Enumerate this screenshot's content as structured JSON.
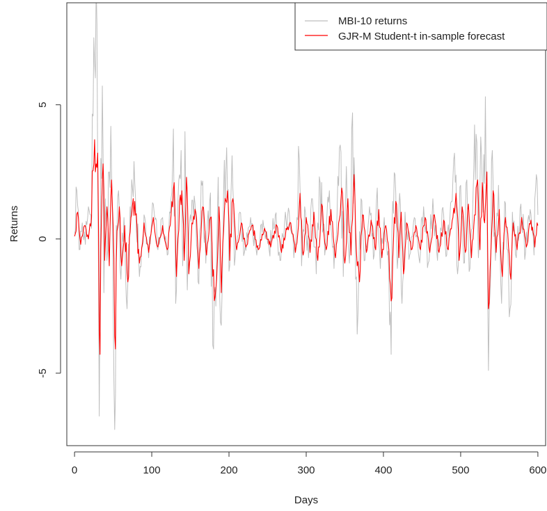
{
  "chart_data": {
    "type": "line",
    "title": "",
    "xlabel": "Days",
    "ylabel": "Returns",
    "xlim": [
      -10,
      610
    ],
    "ylim": [
      -7.7,
      8.8
    ],
    "x_ticks": [
      0,
      100,
      200,
      300,
      400,
      500,
      600
    ],
    "x_tick_labels": [
      "0",
      "100",
      "200",
      "300",
      "400",
      "500",
      "600"
    ],
    "y_ticks": [
      -5,
      0,
      5
    ],
    "y_tick_labels": [
      "-5",
      "0",
      "5"
    ],
    "grid": false,
    "legend_position": "top-right",
    "series": [
      {
        "name": "MBI-10 returns",
        "color": "#bebebe",
        "approximate": true,
        "keypoints": [
          [
            0,
            0.2
          ],
          [
            3,
            1.8
          ],
          [
            6,
            -0.4
          ],
          [
            10,
            0.6
          ],
          [
            14,
            -0.2
          ],
          [
            18,
            1.2
          ],
          [
            22,
            0.4
          ],
          [
            25,
            7.5
          ],
          [
            27,
            6.0
          ],
          [
            29,
            8.0
          ],
          [
            31,
            -1.0
          ],
          [
            32,
            -6.6
          ],
          [
            34,
            3.0
          ],
          [
            36,
            5.7
          ],
          [
            38,
            -2.0
          ],
          [
            40,
            1.5
          ],
          [
            42,
            -0.8
          ],
          [
            45,
            2.5
          ],
          [
            47,
            4.2
          ],
          [
            49,
            1.0
          ],
          [
            51,
            -5.3
          ],
          [
            52,
            -7.1
          ],
          [
            54,
            0.5
          ],
          [
            57,
            1.8
          ],
          [
            60,
            -1.5
          ],
          [
            64,
            0.8
          ],
          [
            68,
            -2.6
          ],
          [
            72,
            1.2
          ],
          [
            78,
            2.1
          ],
          [
            84,
            -1.4
          ],
          [
            90,
            0.9
          ],
          [
            96,
            -0.7
          ],
          [
            102,
            1.3
          ],
          [
            108,
            -0.4
          ],
          [
            114,
            0.8
          ],
          [
            120,
            -0.6
          ],
          [
            125,
            1.5
          ],
          [
            128,
            4.1
          ],
          [
            131,
            -2.4
          ],
          [
            135,
            2.2
          ],
          [
            138,
            3.3
          ],
          [
            140,
            -1.0
          ],
          [
            143,
            4.0
          ],
          [
            146,
            -1.9
          ],
          [
            150,
            0.9
          ],
          [
            155,
            1.6
          ],
          [
            160,
            -1.6
          ],
          [
            165,
            2.0
          ],
          [
            170,
            -0.9
          ],
          [
            175,
            1.4
          ],
          [
            180,
            -4.1
          ],
          [
            183,
            -2.5
          ],
          [
            186,
            2.3
          ],
          [
            189,
            -3.1
          ],
          [
            193,
            1.7
          ],
          [
            197,
            3.4
          ],
          [
            200,
            -1.2
          ],
          [
            204,
            3.1
          ],
          [
            208,
            -0.7
          ],
          [
            214,
            1.0
          ],
          [
            220,
            -0.5
          ],
          [
            228,
            0.8
          ],
          [
            236,
            -0.6
          ],
          [
            244,
            0.7
          ],
          [
            252,
            -0.4
          ],
          [
            260,
            0.9
          ],
          [
            266,
            -0.8
          ],
          [
            272,
            0.6
          ],
          [
            278,
            1.0
          ],
          [
            284,
            -0.7
          ],
          [
            288,
            0.8
          ],
          [
            291,
            3.0
          ],
          [
            294,
            -1.0
          ],
          [
            298,
            1.2
          ],
          [
            303,
            -0.7
          ],
          [
            308,
            1.5
          ],
          [
            313,
            -1.3
          ],
          [
            318,
            2.1
          ],
          [
            324,
            -0.6
          ],
          [
            330,
            1.8
          ],
          [
            336,
            -1.1
          ],
          [
            340,
            1.0
          ],
          [
            344,
            3.5
          ],
          [
            348,
            -1.4
          ],
          [
            352,
            2.7
          ],
          [
            356,
            -0.9
          ],
          [
            360,
            4.7
          ],
          [
            364,
            -1.5
          ],
          [
            367,
            -2.8
          ],
          [
            371,
            1.5
          ],
          [
            376,
            -0.8
          ],
          [
            382,
            1.2
          ],
          [
            388,
            -0.6
          ],
          [
            392,
            1.9
          ],
          [
            396,
            -1.1
          ],
          [
            401,
            0.8
          ],
          [
            405,
            -0.6
          ],
          [
            408,
            -3.2
          ],
          [
            410,
            -4.3
          ],
          [
            412,
            1.4
          ],
          [
            415,
            2.4
          ],
          [
            418,
            -1.1
          ],
          [
            421,
            1.7
          ],
          [
            424,
            -2.4
          ],
          [
            428,
            1.0
          ],
          [
            434,
            -0.6
          ],
          [
            440,
            0.8
          ],
          [
            446,
            -0.7
          ],
          [
            452,
            1.2
          ],
          [
            458,
            -0.9
          ],
          [
            464,
            1.5
          ],
          [
            470,
            -0.8
          ],
          [
            476,
            1.1
          ],
          [
            482,
            -0.6
          ],
          [
            488,
            1.4
          ],
          [
            492,
            3.2
          ],
          [
            496,
            -1.3
          ],
          [
            500,
            2.0
          ],
          [
            504,
            -0.9
          ],
          [
            508,
            2.2
          ],
          [
            512,
            -1.1
          ],
          [
            516,
            1.6
          ],
          [
            520,
            3.9
          ],
          [
            523,
            -0.7
          ],
          [
            526,
            3.8
          ],
          [
            529,
            1.0
          ],
          [
            532,
            5.3
          ],
          [
            534,
            2.0
          ],
          [
            536,
            -4.9
          ],
          [
            538,
            -2.0
          ],
          [
            541,
            3.3
          ],
          [
            545,
            -0.8
          ],
          [
            549,
            2.0
          ],
          [
            553,
            -2.4
          ],
          [
            557,
            1.4
          ],
          [
            561,
            -0.4
          ],
          [
            564,
            -2.6
          ],
          [
            567,
            1.0
          ],
          [
            572,
            -0.7
          ],
          [
            578,
            1.3
          ],
          [
            584,
            -0.5
          ],
          [
            590,
            1.1
          ],
          [
            595,
            -0.6
          ],
          [
            598,
            2.4
          ],
          [
            600,
            0.9
          ]
        ]
      },
      {
        "name": "GJR-M Student-t in-sample forecast",
        "color": "#ff0000",
        "approximate": true,
        "keypoints": [
          [
            0,
            0.1
          ],
          [
            4,
            1.0
          ],
          [
            8,
            -0.2
          ],
          [
            13,
            0.5
          ],
          [
            18,
            0.0
          ],
          [
            22,
            0.8
          ],
          [
            26,
            3.7
          ],
          [
            28,
            2.8
          ],
          [
            30,
            3.2
          ],
          [
            32,
            -3.4
          ],
          [
            33,
            -4.3
          ],
          [
            35,
            1.0
          ],
          [
            37,
            2.8
          ],
          [
            39,
            -0.8
          ],
          [
            42,
            1.2
          ],
          [
            45,
            -1.0
          ],
          [
            48,
            2.2
          ],
          [
            50,
            0.5
          ],
          [
            52,
            -3.6
          ],
          [
            53,
            -4.1
          ],
          [
            55,
            0.3
          ],
          [
            58,
            1.2
          ],
          [
            61,
            -1.0
          ],
          [
            65,
            0.5
          ],
          [
            69,
            -1.6
          ],
          [
            73,
            0.8
          ],
          [
            78,
            1.4
          ],
          [
            84,
            -0.9
          ],
          [
            90,
            0.6
          ],
          [
            96,
            -0.5
          ],
          [
            102,
            0.8
          ],
          [
            108,
            -0.3
          ],
          [
            114,
            0.5
          ],
          [
            120,
            -0.4
          ],
          [
            125,
            0.9
          ],
          [
            129,
            2.1
          ],
          [
            132,
            -1.4
          ],
          [
            136,
            1.4
          ],
          [
            139,
            1.8
          ],
          [
            142,
            -0.8
          ],
          [
            145,
            2.3
          ],
          [
            148,
            -1.3
          ],
          [
            152,
            0.6
          ],
          [
            157,
            1.0
          ],
          [
            161,
            -1.1
          ],
          [
            166,
            1.2
          ],
          [
            171,
            -0.6
          ],
          [
            176,
            0.8
          ],
          [
            181,
            -2.3
          ],
          [
            184,
            -1.5
          ],
          [
            187,
            1.2
          ],
          [
            190,
            -2.0
          ],
          [
            194,
            1.0
          ],
          [
            198,
            1.8
          ],
          [
            201,
            -0.8
          ],
          [
            205,
            1.5
          ],
          [
            210,
            -0.4
          ],
          [
            216,
            0.6
          ],
          [
            222,
            -0.3
          ],
          [
            230,
            0.5
          ],
          [
            238,
            -0.4
          ],
          [
            246,
            0.4
          ],
          [
            254,
            -0.3
          ],
          [
            262,
            0.5
          ],
          [
            268,
            -0.5
          ],
          [
            274,
            0.4
          ],
          [
            280,
            0.6
          ],
          [
            286,
            -0.5
          ],
          [
            290,
            0.5
          ],
          [
            292,
            1.7
          ],
          [
            296,
            -0.6
          ],
          [
            300,
            0.8
          ],
          [
            305,
            -0.5
          ],
          [
            310,
            1.0
          ],
          [
            315,
            -0.8
          ],
          [
            320,
            1.3
          ],
          [
            326,
            -0.4
          ],
          [
            332,
            1.1
          ],
          [
            338,
            -0.7
          ],
          [
            342,
            0.6
          ],
          [
            346,
            1.9
          ],
          [
            350,
            -0.9
          ],
          [
            354,
            1.5
          ],
          [
            358,
            -0.6
          ],
          [
            362,
            2.4
          ],
          [
            366,
            -1.0
          ],
          [
            369,
            -1.6
          ],
          [
            373,
            0.9
          ],
          [
            378,
            -0.5
          ],
          [
            384,
            0.7
          ],
          [
            390,
            -0.4
          ],
          [
            394,
            1.1
          ],
          [
            398,
            -0.7
          ],
          [
            403,
            0.5
          ],
          [
            407,
            -0.4
          ],
          [
            409,
            -1.7
          ],
          [
            411,
            -2.2
          ],
          [
            414,
            0.8
          ],
          [
            417,
            1.3
          ],
          [
            420,
            -0.7
          ],
          [
            423,
            1.0
          ],
          [
            426,
            -1.3
          ],
          [
            430,
            0.6
          ],
          [
            436,
            -0.4
          ],
          [
            442,
            0.5
          ],
          [
            448,
            -0.4
          ],
          [
            454,
            0.8
          ],
          [
            460,
            -0.5
          ],
          [
            466,
            0.9
          ],
          [
            472,
            -0.5
          ],
          [
            478,
            0.7
          ],
          [
            484,
            -0.4
          ],
          [
            490,
            0.8
          ],
          [
            494,
            1.7
          ],
          [
            498,
            -0.8
          ],
          [
            502,
            1.2
          ],
          [
            506,
            -0.5
          ],
          [
            510,
            1.3
          ],
          [
            514,
            -0.7
          ],
          [
            518,
            0.9
          ],
          [
            522,
            2.2
          ],
          [
            525,
            -0.4
          ],
          [
            528,
            2.1
          ],
          [
            531,
            0.6
          ],
          [
            534,
            2.5
          ],
          [
            536,
            -2.6
          ],
          [
            538,
            -1.2
          ],
          [
            542,
            1.8
          ],
          [
            546,
            -0.5
          ],
          [
            550,
            1.1
          ],
          [
            554,
            -1.4
          ],
          [
            558,
            0.8
          ],
          [
            562,
            -0.3
          ],
          [
            565,
            -1.5
          ],
          [
            568,
            0.6
          ],
          [
            573,
            -0.4
          ],
          [
            579,
            0.8
          ],
          [
            585,
            -0.3
          ],
          [
            591,
            0.7
          ],
          [
            596,
            -0.3
          ],
          [
            599,
            0.6
          ],
          [
            600,
            0.5
          ]
        ]
      }
    ]
  }
}
